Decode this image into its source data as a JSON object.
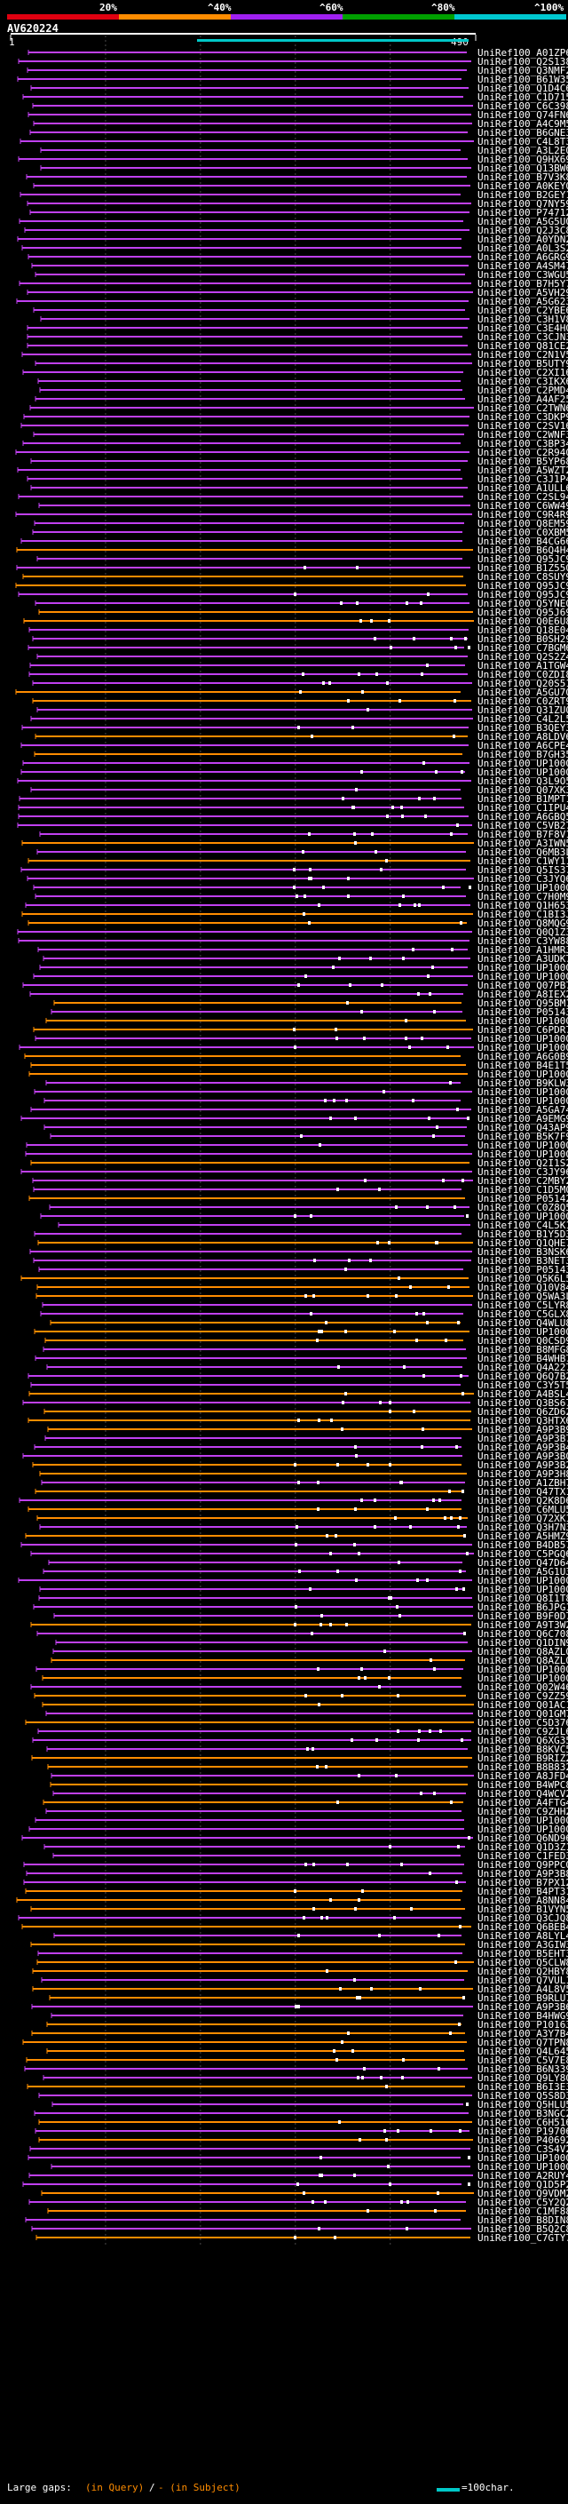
{
  "identity_bar": {
    "labels": [
      "20%",
      "^40%",
      "^60%",
      "^80%",
      "^100%"
    ],
    "colors": [
      "#e00010",
      "#ff8c00",
      "#a020f0",
      "#00a000",
      "#00c8d0"
    ]
  },
  "query": {
    "id": "AV620224",
    "start": "1",
    "end": "490"
  },
  "legend": {
    "gaps": "Large gaps: ",
    "in_query": "(in Query)",
    "sep": "/",
    "in_subject": "- (in Subject)",
    "scale": "=100char."
  },
  "chart_data": {
    "type": "alignment",
    "query_length": 490,
    "color_legend": {
      "orange": "#ff8c00",
      "purple": "#c040f0",
      "cyan": "#00c8c8"
    },
    "hits": [
      "UniRef100_A01ZP6",
      "UniRef100_Q2S138",
      "UniRef100_Q3NMF2",
      "UniRef100_B61W35",
      "UniRef100_Q1D4C6",
      "UniRef100_C1D715",
      "UniRef100_C6C398",
      "UniRef100_Q74FN6",
      "UniRef100_A4C9M5",
      "UniRef100_B6GNE3",
      "UniRef100_C4L8T3",
      "UniRef100_A3L2E0",
      "UniRef100_Q9HX69",
      "UniRef100_Q13BW6",
      "UniRef100_B7V3K8",
      "UniRef100_A0KEY0",
      "UniRef100_B2GEY1",
      "UniRef100_Q7NY59",
      "UniRef100_P74712",
      "UniRef100_A5G5U0",
      "UniRef100_Q2J3C8",
      "UniRef100_A0YDN2",
      "UniRef100_A0L3S2",
      "UniRef100_A6GRG9",
      "UniRef100_A4SM47",
      "UniRef100_C3WGU5",
      "UniRef100_B7H5Y7",
      "UniRef100_A5VH29",
      "UniRef100_A5G623",
      "UniRef100_C2YBE6",
      "UniRef100_C3H1V8",
      "UniRef100_C3E4H0",
      "UniRef100_C3CJN3",
      "UniRef100_Q81CE2",
      "UniRef100_C2N1V5",
      "UniRef100_B5UTY9",
      "UniRef100_C2XI16",
      "UniRef100_C3IKX6",
      "UniRef100_C2PMD4",
      "UniRef100_A4AF25",
      "UniRef100_C2TWN6",
      "UniRef100_C3DKP9",
      "UniRef100_C2SV16",
      "UniRef100_C2WNF3",
      "UniRef100_C3BP34",
      "UniRef100_C2R940",
      "UniRef100_B5YP68",
      "UniRef100_A5WZT2",
      "UniRef100_C3J1P4",
      "UniRef100_A1ULL6",
      "UniRef100_C2SL94",
      "UniRef100_C6WW49",
      "UniRef100_C9R4R9",
      "UniRef100_Q8EM59",
      "UniRef100_C0XBM5",
      "UniRef100_B4CG66",
      "UniRef100_B6Q4H4",
      "UniRef100_Q95JC9",
      "UniRef100_B1Z550",
      "UniRef100_C8SUY9",
      "UniRef100_Q95JC9-2",
      "UniRef100_Q95JC9-3",
      "UniRef100_Q5YNE0",
      "UniRef100_Q95J69",
      "UniRef100_Q0E6U8",
      "UniRef100_Q18E04",
      "UniRef100_B0SH29",
      "UniRef100_C7BGM6",
      "UniRef100_Q2S2Z4",
      "UniRef100_A1TGW4",
      "UniRef100_C0ZDI8",
      "UniRef100_Q20S51",
      "UniRef100_A5GU70",
      "UniRef100_C0ZRT9",
      "UniRef100_Q31ZU0",
      "UniRef100_C4L2L5",
      "UniRef100_B3QEY3",
      "UniRef100_A8LDV6",
      "UniRef100_A6CPE4",
      "UniRef100_B7GH35",
      "UniRef100_UP1000...",
      "UniRef100_UP1000...",
      "UniRef100_Q3L9O5",
      "UniRef100_Q07XK3",
      "UniRef100_B1MPT1",
      "UniRef100_C1IPU4",
      "UniRef100_A6GBQ5",
      "UniRef100_C5VB27",
      "UniRef100_B7F8V1",
      "UniRef100_A3IWN5",
      "UniRef100_Q6MB3L",
      "UniRef100_C1WY11",
      "UniRef100_Q5IS37",
      "UniRef100_C3JYQ6",
      "UniRef100_UP1000...",
      "UniRef100_C7H0M9",
      "UniRef100_Q1H653",
      "UniRef100_C1BI3J",
      "UniRef100_Q8MQG9",
      "UniRef100_Q0Q1Z3",
      "UniRef100_C3YW88",
      "UniRef100_A1HMR3",
      "UniRef100_A3UDK7",
      "UniRef100_UP1000...",
      "UniRef100_UP1000...",
      "UniRef100_Q07PB7",
      "UniRef100_A8IEX2",
      "UniRef100_Q95BM1",
      "UniRef100_P05143",
      "UniRef100_UP1000...",
      "UniRef100_C6PDR7",
      "UniRef100_UP1000...",
      "UniRef100_UP1000...",
      "UniRef100_A6G0B9",
      "UniRef100_B4E1T5",
      "UniRef100_UP1000...",
      "UniRef100_B9KLW3",
      "UniRef100_UP1000...",
      "UniRef100_UP1000...",
      "UniRef100_A5GA74",
      "UniRef100_A9EMG9",
      "UniRef100_Q43AP9",
      "UniRef100_B5K7F9",
      "UniRef100_UP1000...",
      "UniRef100_UP1000...",
      "UniRef100_Q2I1S2",
      "UniRef100_C3JY96",
      "UniRef100_C2MBY2",
      "UniRef100_C1D5M0",
      "UniRef100_P05142",
      "UniRef100_C0Z8Q5",
      "UniRef100_UP1000...",
      "UniRef100_C4L5K1",
      "UniRef100_B1Y5D3",
      "UniRef100_Q1QHE7",
      "UniRef100_B3NSK6",
      "UniRef100_B3NET3",
      "UniRef100_P05143-2",
      "UniRef100_Q5K6L5",
      "UniRef100_Q10V84",
      "UniRef100_Q5WA3L",
      "UniRef100_C5LYR8",
      "UniRef100_C5GLX8",
      "UniRef100_Q4WLU8",
      "UniRef100_UP1000...",
      "UniRef100_Q0CSD9",
      "UniRef100_B8MFG8",
      "UniRef100_B4WHB7",
      "UniRef100_Q4A227",
      "UniRef100_Q6Q7B2",
      "UniRef100_C3Y5T5",
      "UniRef100_A4BSL4",
      "UniRef100_Q3BS67",
      "UniRef100_Q6ZD62",
      "UniRef100_Q3HTX6",
      "UniRef100_A9P3B9",
      "UniRef100_A9P3B7",
      "UniRef100_A9P3B4",
      "UniRef100_A9P3B0",
      "UniRef100_A9P3B2",
      "UniRef100_A9P3H8",
      "UniRef100_A1ZBH7",
      "UniRef100_Q47TX1",
      "UniRef100_Q2K8D6",
      "UniRef100_C6MLU5",
      "UniRef100_Q72XK1",
      "UniRef100_Q3H7N3",
      "UniRef100_A5HMZ9",
      "UniRef100_B4DB57",
      "UniRef100_C5PGQ6",
      "UniRef100_Q47D64",
      "UniRef100_A5G1U3",
      "UniRef100_UP1000...",
      "UniRef100_UP1000...",
      "UniRef100_Q8I1T8",
      "UniRef100_B6JPG1",
      "UniRef100_B9F0D7",
      "UniRef100_A9T3W2",
      "UniRef100_Q6C708",
      "UniRef100_Q1DIN9",
      "UniRef100_Q8AZL0-2",
      "UniRef100_Q8AZL0",
      "UniRef100_UP1000...",
      "UniRef100_UP1000...",
      "UniRef100_Q02W46",
      "UniRef100_C9ZZ59",
      "UniRef100_Q01AC1",
      "UniRef100_Q01GM7",
      "UniRef100_C5D376",
      "UniRef100_C9ZJL6",
      "UniRef100_Q6XG35",
      "UniRef100_B8KVC5",
      "UniRef100_B9RIZ2",
      "UniRef100_B8B832",
      "UniRef100_A8JFD4",
      "UniRef100_B4WPC8",
      "UniRef100_Q4WCV2",
      "UniRef100_A4FTG4",
      "UniRef100_C9ZHH2",
      "UniRef100_UP1000...",
      "UniRef100_UP1000...",
      "UniRef100_Q6ND96",
      "UniRef100_Q1D3Z1",
      "UniRef100_C1FED3",
      "UniRef100_Q9PPC0",
      "UniRef100_A9P3B8",
      "UniRef100_B7PX12",
      "UniRef100_B4PT31",
      "UniRef100_A8NN84",
      "UniRef100_B1VYN5",
      "UniRef100_Q3CJQ8",
      "UniRef100_Q6BEB4",
      "UniRef100_A8LYL4",
      "UniRef100_A3GIW3",
      "UniRef100_B5EHT3",
      "UniRef100_Q5CLW8",
      "UniRef100_Q2HBY8",
      "UniRef100_Q7VUL1",
      "UniRef100_A4L8V5",
      "UniRef100_B9RLU7",
      "UniRef100_A9P3B6",
      "UniRef100_B4HWG9",
      "UniRef100_P10163",
      "UniRef100_A3Y7B4",
      "UniRef100_Q7TPN8",
      "UniRef100_Q4L645",
      "UniRef100_C5V7E8",
      "UniRef100_B6N339",
      "UniRef100_Q9LY80",
      "UniRef100_B6I3E3",
      "UniRef100_Q5S8D3",
      "UniRef100_Q5HLU5",
      "UniRef100_B3NGC2",
      "UniRef100_C6H516",
      "UniRef100_P19706",
      "UniRef100_P40692",
      "UniRef100_C3S4V2",
      "UniRef100_UP1000...",
      "UniRef100_UP1000...",
      "UniRef100_A2RUY4",
      "UniRef100_Q1D5P2",
      "UniRef100_Q9VDM2",
      "UniRef100_C5Y2Q2",
      "UniRef100_C1MF88",
      "UniRef100_B8DIN8",
      "UniRef100_B5Q2C8",
      "UniRef100_C7GTY7"
    ]
  }
}
